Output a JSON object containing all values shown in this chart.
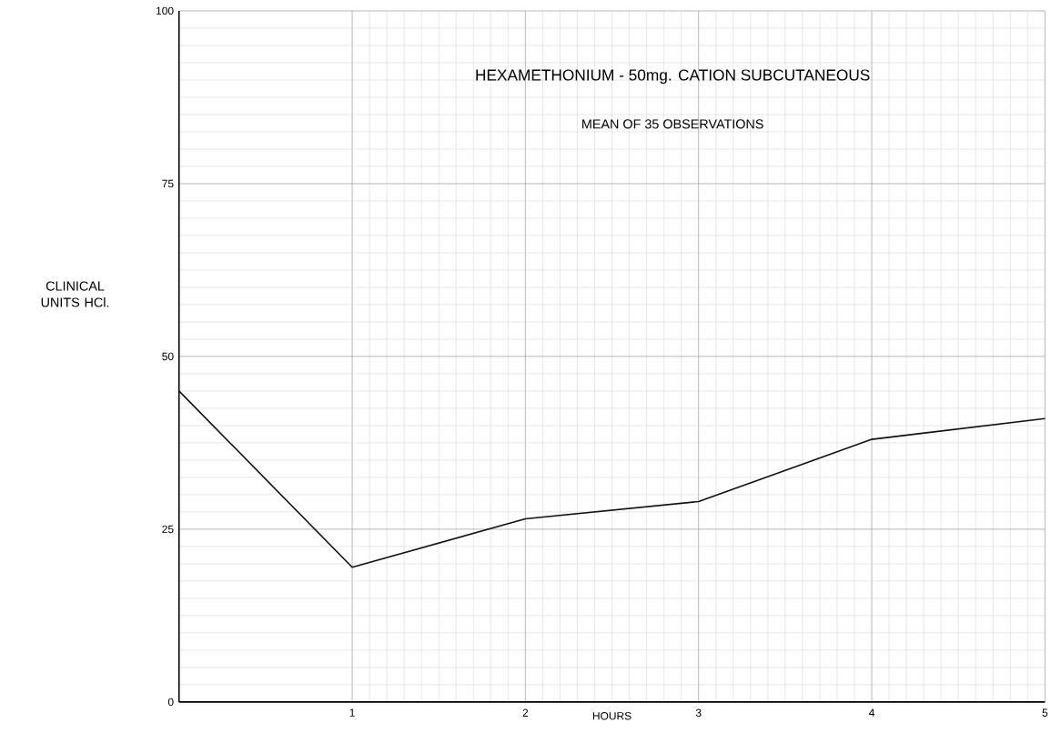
{
  "chart_data": {
    "type": "line",
    "title": "HEXAMETHONIUM - 50mg. CATION SUBCUTANEOUS",
    "subtitle": "MEAN OF 35 OBSERVATIONS",
    "xlabel": "HOURS",
    "ylabel": "CLINICAL UNITS HCl.",
    "x": [
      0,
      1,
      2,
      3,
      4,
      5
    ],
    "series": [
      {
        "color": "#111111",
        "values": [
          45,
          19.5,
          26.5,
          29,
          38,
          41
        ]
      }
    ],
    "xlim": [
      0,
      5
    ],
    "ylim": [
      0,
      100
    ],
    "xticks": [
      1,
      2,
      3,
      4,
      5
    ],
    "yticks": [
      0,
      25,
      50,
      75,
      100
    ],
    "grid": true,
    "marker": "none",
    "line_style": "solid"
  }
}
